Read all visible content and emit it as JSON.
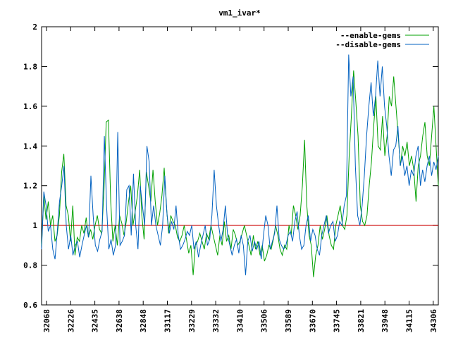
{
  "chart_data": {
    "type": "line",
    "title": "vm1_ivar*",
    "xlabel": "",
    "ylabel": "",
    "ylim": [
      0.6,
      2.0
    ],
    "yticks": [
      "0.6",
      "0.8",
      "1",
      "1.2",
      "1.4",
      "1.6",
      "1.8",
      "2"
    ],
    "xticks": [
      "32068",
      "32226",
      "32435",
      "32638",
      "32848",
      "33117",
      "33229",
      "33332",
      "33410",
      "33506",
      "33589",
      "33670",
      "33745",
      "33821",
      "33948",
      "34115",
      "34306"
    ],
    "reference_line": {
      "value": 1,
      "color": "#cc0000"
    },
    "legend_position": "top-right",
    "grid": false,
    "series": [
      {
        "name": "--enable-gems",
        "color": "#00a000",
        "values": [
          0.9,
          1.15,
          1.03,
          1.12,
          1.0,
          1.05,
          0.92,
          0.95,
          1.05,
          1.27,
          1.36,
          1.1,
          1.05,
          0.92,
          1.1,
          0.85,
          0.94,
          0.92,
          1.0,
          0.96,
          1.04,
          0.94,
          0.98,
          0.93,
          1.0,
          1.05,
          0.98,
          0.96,
          1.18,
          1.52,
          1.53,
          1.12,
          0.92,
          1.0,
          0.9,
          1.05,
          1.01,
          0.95,
          1.02,
          1.12,
          1.2,
          1.0,
          1.07,
          1.15,
          1.28,
          1.05,
          0.93,
          1.27,
          1.2,
          1.12,
          1.28,
          1.12,
          1.0,
          1.06,
          1.15,
          1.29,
          1.1,
          0.96,
          1.05,
          1.02,
          1.0,
          0.94,
          0.92,
          0.95,
          1.0,
          0.93,
          0.86,
          0.9,
          0.75,
          0.9,
          0.92,
          0.96,
          0.92,
          0.88,
          0.96,
          0.93,
          1.0,
          0.95,
          0.9,
          0.85,
          0.95,
          0.9,
          1.02,
          0.92,
          0.95,
          0.88,
          0.98,
          0.95,
          0.9,
          0.92,
          0.96,
          1.0,
          0.95,
          0.9,
          0.85,
          0.95,
          0.88,
          0.92,
          0.85,
          0.9,
          0.82,
          0.85,
          0.9,
          0.88,
          0.93,
          1.0,
          0.95,
          0.88,
          0.85,
          0.9,
          0.88,
          1.0,
          0.95,
          1.1,
          1.05,
          0.98,
          1.05,
          1.2,
          1.43,
          1.1,
          0.95,
          0.9,
          0.74,
          0.85,
          0.9,
          1.0,
          0.93,
          0.98,
          1.05,
          0.95,
          0.9,
          0.88,
          1.0,
          1.05,
          1.1,
          1.0,
          0.98,
          1.05,
          1.35,
          1.55,
          1.78,
          1.62,
          1.45,
          1.1,
          1.02,
          1.0,
          1.05,
          1.2,
          1.32,
          1.5,
          1.65,
          1.4,
          1.38,
          1.55,
          1.35,
          1.45,
          1.65,
          1.6,
          1.75,
          1.6,
          1.45,
          1.3,
          1.4,
          1.35,
          1.42,
          1.3,
          1.35,
          1.28,
          1.12,
          1.3,
          1.35,
          1.45,
          1.52,
          1.35,
          1.3,
          1.45,
          1.6,
          1.4,
          1.2
        ]
      },
      {
        "name": "--disable-gems",
        "color": "#0060c0",
        "values": [
          0.88,
          1.17,
          1.1,
          0.97,
          1.0,
          0.88,
          0.83,
          0.97,
          1.12,
          1.2,
          1.3,
          1.0,
          0.88,
          0.95,
          0.85,
          0.9,
          0.92,
          0.84,
          0.9,
          0.95,
          1.0,
          0.94,
          1.25,
          1.05,
          0.9,
          0.87,
          0.93,
          0.97,
          1.45,
          1.1,
          0.88,
          0.93,
          0.85,
          0.9,
          1.47,
          0.9,
          0.92,
          0.95,
          1.18,
          1.2,
          0.95,
          1.26,
          1.0,
          0.88,
          1.2,
          1.1,
          1.0,
          1.4,
          1.32,
          1.0,
          1.1,
          1.0,
          0.95,
          0.9,
          1.0,
          1.25,
          1.05,
          0.96,
          1.02,
          0.98,
          1.1,
          0.95,
          0.88,
          0.9,
          0.93,
          0.97,
          0.95,
          1.0,
          0.88,
          0.92,
          0.84,
          0.9,
          0.95,
          1.0,
          0.9,
          0.93,
          1.05,
          1.28,
          1.1,
          1.0,
          0.92,
          0.98,
          1.1,
          0.95,
          0.9,
          0.85,
          0.9,
          0.93,
          0.86,
          0.95,
          0.9,
          0.75,
          0.92,
          0.95,
          0.87,
          0.92,
          0.88,
          0.92,
          0.83,
          0.95,
          1.05,
          1.0,
          0.88,
          0.92,
          0.96,
          1.1,
          0.93,
          0.9,
          0.88,
          0.9,
          0.95,
          0.97,
          0.92,
          1.02,
          1.07,
          0.95,
          0.88,
          0.9,
          1.0,
          1.05,
          0.92,
          0.98,
          0.95,
          0.88,
          0.85,
          0.95,
          1.0,
          1.05,
          0.96,
          1.0,
          1.02,
          0.92,
          0.95,
          1.02,
          1.0,
          1.1,
          1.15,
          1.86,
          1.65,
          1.75,
          1.3,
          1.05,
          1.0,
          1.1,
          1.25,
          1.45,
          1.6,
          1.72,
          1.55,
          1.65,
          1.83,
          1.65,
          1.8,
          1.6,
          1.5,
          1.35,
          1.25,
          1.38,
          1.4,
          1.5,
          1.3,
          1.35,
          1.25,
          1.3,
          1.2,
          1.28,
          1.25,
          1.35,
          1.4,
          1.2,
          1.28,
          1.22,
          1.3,
          1.35,
          1.25,
          1.32,
          1.28,
          1.35
        ]
      }
    ]
  }
}
